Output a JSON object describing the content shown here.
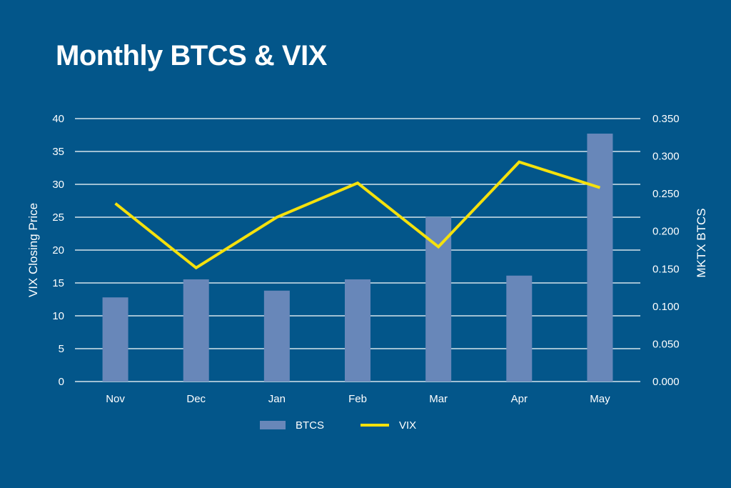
{
  "chart_data": {
    "type": "bar+line",
    "title": "Monthly BTCS & VIX",
    "categories": [
      "Nov",
      "Dec",
      "Jan",
      "Feb",
      "Mar",
      "Apr",
      "May"
    ],
    "series": [
      {
        "name": "BTCS",
        "type": "bar",
        "axis": "right",
        "values": [
          0.112,
          0.136,
          0.121,
          0.136,
          0.219,
          0.141,
          0.33
        ]
      },
      {
        "name": "VIX",
        "type": "line",
        "axis": "left",
        "values": [
          27.1,
          17.3,
          25.0,
          30.2,
          20.5,
          33.4,
          29.5
        ]
      }
    ],
    "ylabel_left": "VIX Closing Price",
    "ylabel_right": "MKTX BTCS",
    "ylim_left": [
      0,
      40
    ],
    "ylim_right": [
      0,
      0.35
    ],
    "yticks_left": [
      "0",
      "5",
      "10",
      "15",
      "20",
      "25",
      "30",
      "35",
      "40"
    ],
    "yticks_right": [
      "0.000",
      "0.050",
      "0.100",
      "0.150",
      "0.200",
      "0.250",
      "0.300",
      "0.350"
    ],
    "grid": true,
    "legend_position": "bottom-center",
    "colors": {
      "background": "#03568a",
      "bar": "#6887b9",
      "line": "#f5e10c",
      "grid": "#ffffff",
      "text": "#ffffff"
    }
  }
}
